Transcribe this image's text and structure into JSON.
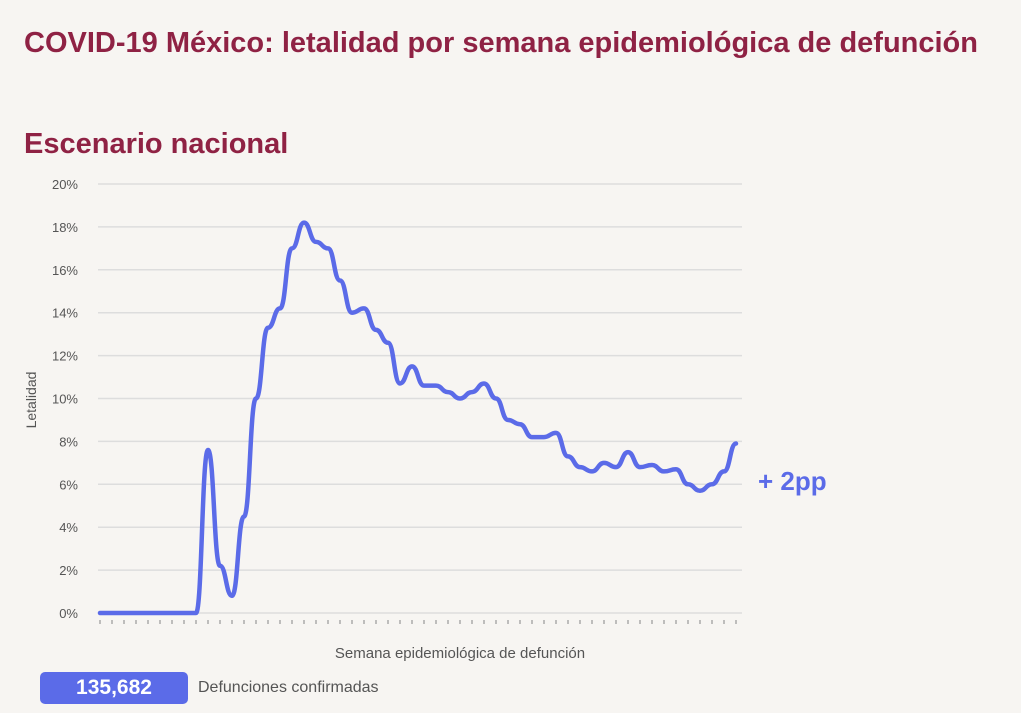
{
  "title": "COVID-19 México: letalidad por semana epidemiológica de defunción",
  "subtitle": "Escenario nacional",
  "colors": {
    "title": "#8f2244",
    "line": "#5b6be8"
  },
  "chart_data": {
    "type": "line",
    "title": "COVID-19 México: letalidad por semana epidemiológica de defunción",
    "xlabel": "Semana epidemiológica de defunción",
    "ylabel": "Letalidad",
    "ylim": [
      0,
      20
    ],
    "yticks": [
      "0%",
      "2%",
      "4%",
      "6%",
      "8%",
      "10%",
      "12%",
      "14%",
      "16%",
      "18%",
      "20%"
    ],
    "grid": true,
    "series": [
      {
        "values": [
          0,
          0,
          0,
          0,
          0,
          0,
          0,
          0,
          0,
          7.6,
          2.2,
          0.8,
          4.5,
          10,
          13.3,
          14.2,
          17,
          18.2,
          17.3,
          17,
          15.5,
          14,
          14.2,
          13.2,
          12.6,
          10.7,
          11.5,
          10.6,
          10.6,
          10.3,
          10,
          10.3,
          10.7,
          10,
          9,
          8.8,
          8.2,
          8.2,
          8.4,
          7.3,
          6.8,
          6.6,
          7,
          6.8,
          7.5,
          6.8,
          6.9,
          6.6,
          6.7,
          6,
          5.7,
          6,
          6.6,
          7.9
        ]
      }
    ],
    "annotation": "+ 2pp"
  },
  "footer": {
    "count": "135,682",
    "label": "Defunciones confirmadas"
  }
}
